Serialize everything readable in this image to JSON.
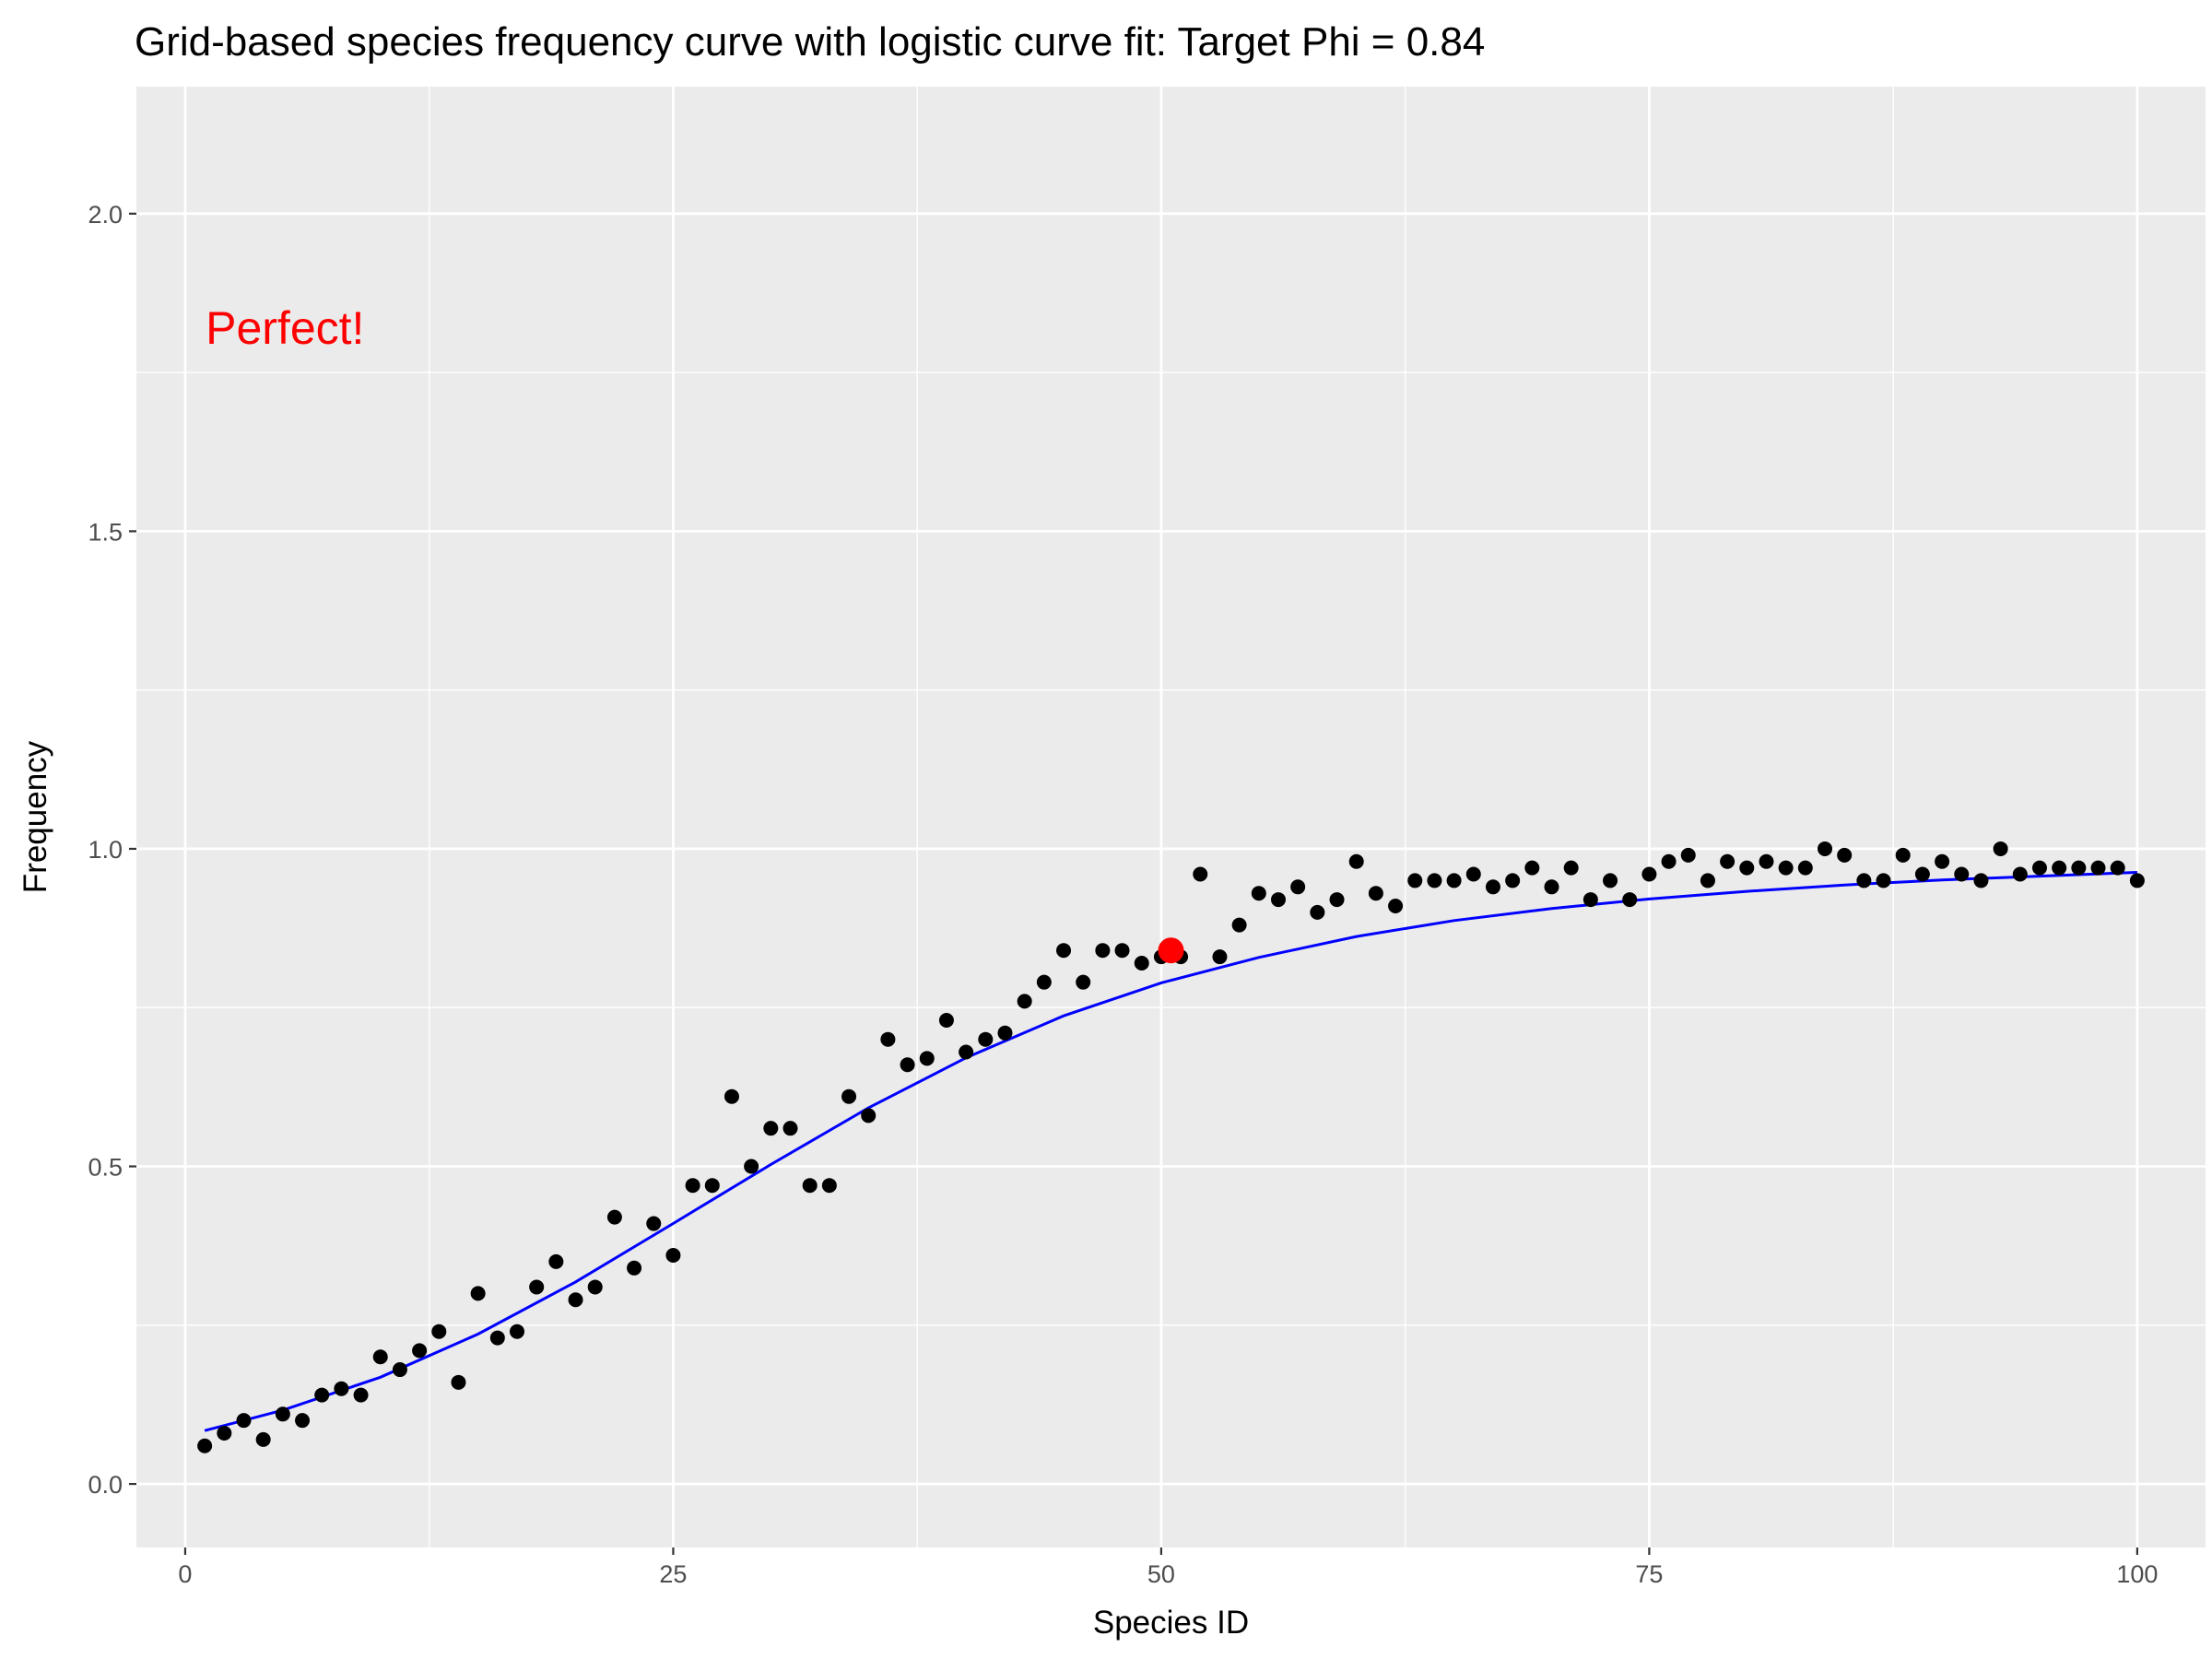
{
  "chart_data": {
    "type": "scatter",
    "title": "Grid-based species frequency curve with logistic curve fit: Target Phi = 0.84",
    "xlabel": "Species ID",
    "ylabel": "Frequency",
    "xlim": [
      -2.5,
      103.5
    ],
    "ylim": [
      -0.1,
      2.2
    ],
    "x_ticks": [
      0,
      25,
      50,
      75,
      100
    ],
    "y_ticks": [
      0.0,
      0.5,
      1.0,
      1.5,
      2.0
    ],
    "x_tick_labels": [
      "0",
      "25",
      "50",
      "75",
      "100"
    ],
    "y_tick_labels": [
      "0.0",
      "0.5",
      "1.0",
      "1.5",
      "2.0"
    ],
    "grid": true,
    "annotation": {
      "text": "Perfect!",
      "x": 1,
      "y": 1.82,
      "color": "#ff0000"
    },
    "series": [
      {
        "type": "scatter",
        "color": "#000000",
        "x": [
          1,
          2,
          3,
          4,
          5,
          6,
          7,
          8,
          9,
          10,
          11,
          12,
          13,
          14,
          15,
          16,
          17,
          18,
          19,
          20,
          21,
          22,
          23,
          24,
          25,
          26,
          27,
          28,
          29,
          30,
          31,
          32,
          33,
          34,
          35,
          36,
          37,
          38,
          39,
          40,
          41,
          42,
          43,
          44,
          45,
          46,
          47,
          48,
          49,
          50,
          51,
          52,
          53,
          54,
          55,
          56,
          57,
          58,
          59,
          60,
          61,
          62,
          63,
          64,
          65,
          66,
          67,
          68,
          69,
          70,
          71,
          72,
          73,
          74,
          75,
          76,
          77,
          78,
          79,
          80,
          81,
          82,
          83,
          84,
          85,
          86,
          87,
          88,
          89,
          90,
          91,
          92,
          93,
          94,
          95,
          96,
          97,
          98,
          99,
          100
        ],
        "y": [
          0.06,
          0.08,
          0.1,
          0.07,
          0.11,
          0.1,
          0.14,
          0.15,
          0.14,
          0.2,
          0.18,
          0.21,
          0.24,
          0.16,
          0.3,
          0.23,
          0.24,
          0.31,
          0.35,
          0.29,
          0.31,
          0.42,
          0.34,
          0.41,
          0.36,
          0.47,
          0.47,
          0.61,
          0.5,
          0.56,
          0.56,
          0.47,
          0.47,
          0.61,
          0.58,
          0.7,
          0.66,
          0.67,
          0.73,
          0.68,
          0.7,
          0.71,
          0.76,
          0.79,
          0.84,
          0.79,
          0.84,
          0.84,
          0.82,
          0.83,
          0.83,
          0.96,
          0.83,
          0.88,
          0.93,
          0.92,
          0.94,
          0.9,
          0.92,
          0.98,
          0.93,
          0.91,
          0.95,
          0.95,
          0.95,
          0.96,
          0.94,
          0.95,
          0.97,
          0.94,
          0.97,
          0.92,
          0.95,
          0.92,
          0.96,
          0.98,
          0.99,
          0.95,
          0.98,
          0.97,
          0.98,
          0.97,
          0.97,
          1.0,
          0.99,
          0.95,
          0.95,
          0.99,
          0.96,
          0.98,
          0.96,
          0.95,
          1.0,
          0.96,
          0.97,
          0.97,
          0.97,
          0.97,
          0.97,
          0.95
        ]
      },
      {
        "type": "line",
        "color": "#0000ff",
        "x": [
          1,
          5,
          10,
          15,
          20,
          25,
          30,
          35,
          40,
          45,
          50,
          55,
          60,
          65,
          70,
          75,
          80,
          85,
          90,
          95,
          100
        ],
        "y": [
          0.084,
          0.116,
          0.168,
          0.236,
          0.318,
          0.41,
          0.503,
          0.592,
          0.671,
          0.737,
          0.789,
          0.829,
          0.862,
          0.887,
          0.906,
          0.921,
          0.933,
          0.943,
          0.951,
          0.957,
          0.963
        ]
      },
      {
        "type": "scatter",
        "color": "#ff0000",
        "x": [
          50.5
        ],
        "y": [
          0.84
        ]
      }
    ]
  }
}
